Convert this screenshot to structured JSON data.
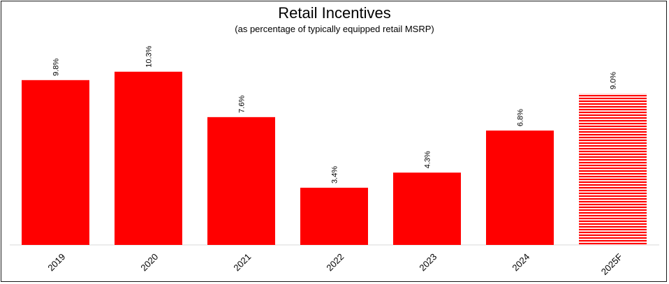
{
  "chart_data": {
    "type": "bar",
    "title": "Retail Incentives",
    "subtitle": "(as percentage of typically equipped retail MSRP)",
    "xlabel": "",
    "ylabel": "",
    "ylim": [
      0,
      11.5
    ],
    "grid": false,
    "categories": [
      "2019",
      "2020",
      "2021",
      "2022",
      "2023",
      "2024",
      "2025F"
    ],
    "values": [
      9.8,
      10.3,
      7.6,
      3.4,
      4.3,
      6.8,
      9.0
    ],
    "data_labels": [
      "9.8%",
      "10.3%",
      "7.6%",
      "3.4%",
      "4.3%",
      "6.8%",
      "9.0%"
    ],
    "forecast": [
      false,
      false,
      false,
      false,
      false,
      false,
      true
    ],
    "bar_color": "#ff0000"
  }
}
